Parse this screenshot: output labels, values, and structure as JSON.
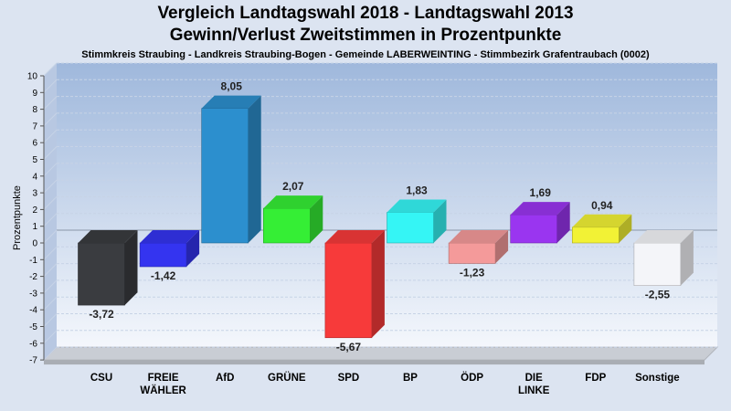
{
  "chart_data": {
    "type": "bar",
    "title": "Vergleich Landtagswahl 2018 - Landtagswahl 2013",
    "subtitle": "Gewinn/Verlust Zweitstimmen in Prozentpunkte",
    "subsubtitle": "Stimmkreis Straubing - Landkreis Straubing-Bogen - Gemeinde LABERWEINTING - Stimmbezirk Grafentraubach (0002)",
    "xlabel": "",
    "ylabel": "Prozentpunkte",
    "ylim": [
      -7,
      10
    ],
    "ytick_step": 1,
    "grid": true,
    "categories": [
      {
        "name": "CSU",
        "line1": "CSU",
        "line2": "",
        "value": -3.72,
        "label": "-3,72",
        "color": "#3a3c40"
      },
      {
        "name": "FREIE WÄHLER",
        "line1": "FREIE",
        "line2": "WÄHLER",
        "value": -1.42,
        "label": "-1,42",
        "color": "#3434f0"
      },
      {
        "name": "AfD",
        "line1": "AfD",
        "line2": "",
        "value": 8.05,
        "label": "8,05",
        "color": "#2c8fce"
      },
      {
        "name": "GRÜNE",
        "line1": "GRÜNE",
        "line2": "",
        "value": 2.07,
        "label": "2,07",
        "color": "#35ee35"
      },
      {
        "name": "SPD",
        "line1": "SPD",
        "line2": "",
        "value": -5.67,
        "label": "-5,67",
        "color": "#f73a3a"
      },
      {
        "name": "BP",
        "line1": "BP",
        "line2": "",
        "value": 1.83,
        "label": "1,83",
        "color": "#35f5f5"
      },
      {
        "name": "ÖDP",
        "line1": "ÖDP",
        "line2": "",
        "value": -1.23,
        "label": "-1,23",
        "color": "#f49a9a"
      },
      {
        "name": "DIE LINKE",
        "line1": "DIE",
        "line2": "LINKE",
        "value": 1.69,
        "label": "1,69",
        "color": "#9a35f0"
      },
      {
        "name": "FDP",
        "line1": "FDP",
        "line2": "",
        "value": 0.94,
        "label": "0,94",
        "color": "#f2f235"
      },
      {
        "name": "Sonstige",
        "line1": "Sonstige",
        "line2": "",
        "value": -2.55,
        "label": "-2,55",
        "color": "#f4f5f9"
      }
    ]
  }
}
